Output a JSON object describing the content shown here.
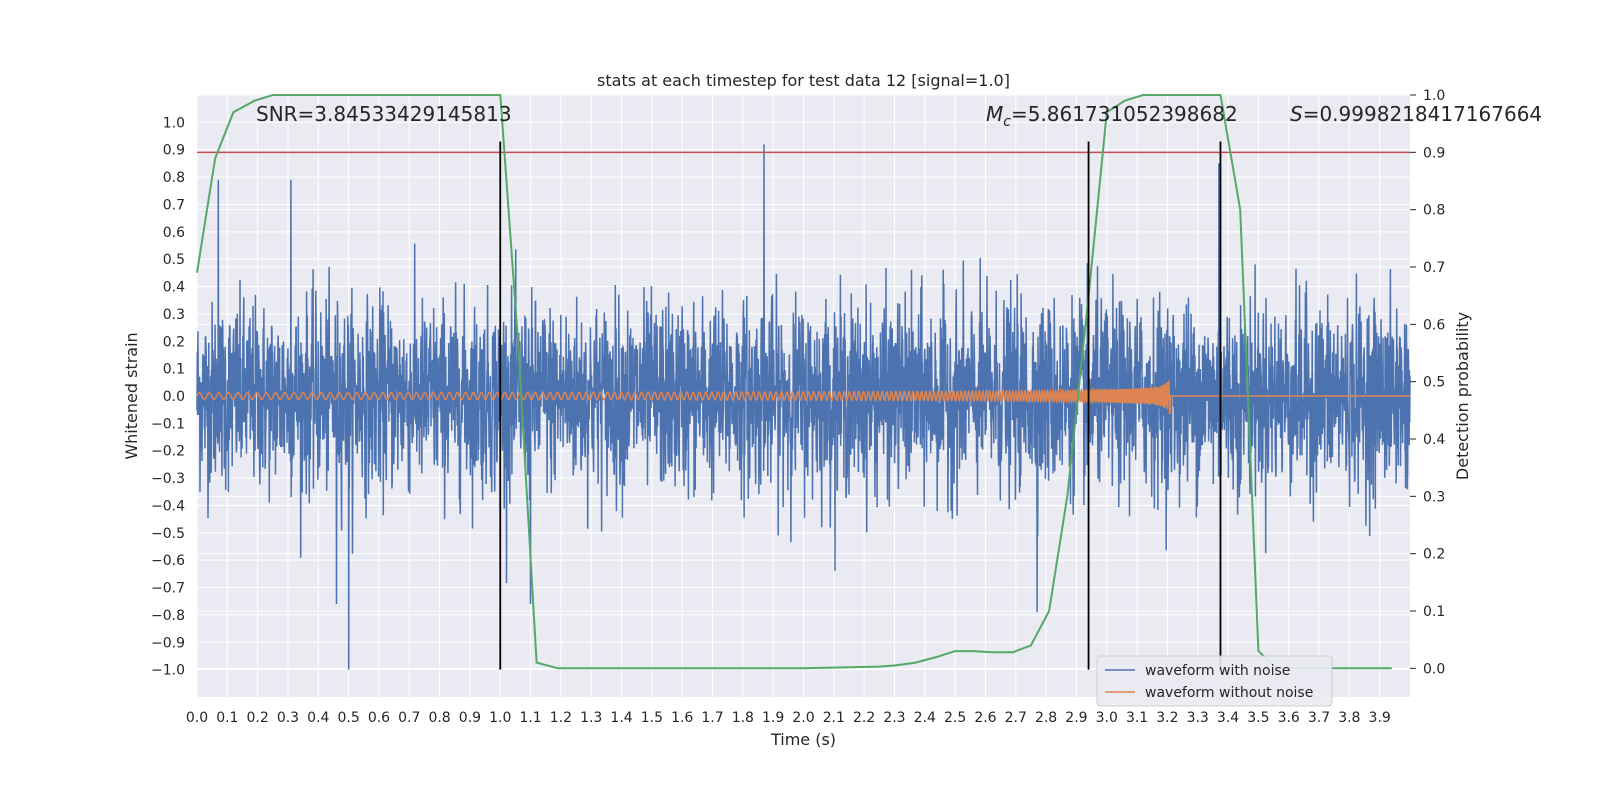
{
  "chart_data": {
    "type": "line",
    "title": "stats at each timestep for test data 12 [signal=1.0]",
    "xlabel": "Time (s)",
    "ylabel": "Whitened strain",
    "y2label": "Detection probability",
    "xlim": [
      0.0,
      4.0
    ],
    "ylim": [
      -1.1,
      1.1
    ],
    "y2lim": [
      -0.05,
      1.0
    ],
    "x_ticks": [
      0.0,
      0.1,
      0.2,
      0.3,
      0.4,
      0.5,
      0.6,
      0.7,
      0.8,
      0.9,
      1.0,
      1.1,
      1.2,
      1.3,
      1.4,
      1.5,
      1.6,
      1.7,
      1.8,
      1.9,
      2.0,
      2.1,
      2.2,
      2.3,
      2.4,
      2.5,
      2.6,
      2.7,
      2.8,
      2.9,
      3.0,
      3.1,
      3.2,
      3.3,
      3.4,
      3.5,
      3.6,
      3.7,
      3.8,
      3.9
    ],
    "x_tick_labels": [
      "0.0",
      "0.1",
      "0.2",
      "0.3",
      "0.4",
      "0.5",
      "0.6",
      "0.7",
      "0.8",
      "0.9",
      "1.0",
      "1.1",
      "1.2",
      "1.3",
      "1.4",
      "1.5",
      "1.6",
      "1.7",
      "1.8",
      "1.9",
      "2.0",
      "2.1",
      "2.2",
      "2.3",
      "2.4",
      "2.5",
      "2.6",
      "2.7",
      "2.8",
      "2.9",
      "3.0",
      "3.1",
      "3.2",
      "3.3",
      "3.4",
      "3.5",
      "3.6",
      "3.7",
      "3.8",
      "3.9"
    ],
    "y_ticks": [
      -1.0,
      -0.9,
      -0.8,
      -0.7,
      -0.6,
      -0.5,
      -0.4,
      -0.3,
      -0.2,
      -0.1,
      0.0,
      0.1,
      0.2,
      0.3,
      0.4,
      0.5,
      0.6,
      0.7,
      0.8,
      0.9,
      1.0
    ],
    "y_tick_labels": [
      "−1.0",
      "−0.9",
      "−0.8",
      "−0.7",
      "−0.6",
      "−0.5",
      "−0.4",
      "−0.3",
      "−0.2",
      "−0.1",
      "0.0",
      "0.1",
      "0.2",
      "0.3",
      "0.4",
      "0.5",
      "0.6",
      "0.7",
      "0.8",
      "0.9",
      "1.0"
    ],
    "y2_ticks": [
      0.0,
      0.1,
      0.2,
      0.3,
      0.4,
      0.5,
      0.6,
      0.7,
      0.8,
      0.9,
      1.0
    ],
    "y2_tick_labels": [
      "0.0",
      "0.1",
      "0.2",
      "0.3",
      "0.4",
      "0.5",
      "0.6",
      "0.7",
      "0.8",
      "0.9",
      "1.0"
    ],
    "annotations": {
      "snr": "SNR=3.84533429145813",
      "mc_symbol": "M",
      "mc_sub": "c",
      "mc_value": "=5.861731052398682",
      "s_symbol": "S",
      "s_value": "=0.9998218417167664"
    },
    "threshold": {
      "axis": "y2",
      "value": 0.9,
      "color": "#c44e52"
    },
    "vertical_lines": [
      {
        "x": 1.0,
        "from_y": -1.0,
        "to_y": 0.93
      },
      {
        "x": 2.94,
        "from_y": -1.0,
        "to_y": 0.93
      },
      {
        "x": 3.375,
        "from_y": -1.0,
        "to_y": 0.93
      }
    ],
    "series": [
      {
        "name": "waveform with noise",
        "axis": "y",
        "color": "#4c72b0",
        "description": "dense noisy strain, sampled 2048 Hz, amplitude mostly within ±0.6 with peaks near 0.92 and −1.0",
        "x_range": [
          0.0,
          4.0
        ],
        "peaks": [
          [
            0.07,
            0.79
          ],
          [
            0.31,
            0.79
          ],
          [
            0.5,
            -1.0
          ],
          [
            0.46,
            -0.76
          ],
          [
            1.87,
            0.92
          ],
          [
            1.1,
            -0.76
          ],
          [
            2.77,
            -0.79
          ],
          [
            3.37,
            0.85
          ]
        ]
      },
      {
        "name": "waveform without noise",
        "axis": "y",
        "color": "#dd8452",
        "description": "chirp waveform with growing amplitude and frequency until merger near 3.21 s, flat zero afterwards",
        "x_range": [
          0.0,
          4.0
        ],
        "merger_time": 3.21,
        "start_amplitude": 0.012,
        "peak_amplitude": 0.09
      },
      {
        "name": "detection probability",
        "axis": "y2",
        "color": "#55a868",
        "x": [
          0.0,
          0.06,
          0.12,
          0.19,
          0.25,
          0.5,
          0.75,
          1.0,
          1.06,
          1.12,
          1.19,
          1.5,
          1.75,
          2.0,
          2.25,
          2.3,
          2.37,
          2.44,
          2.5,
          2.56,
          2.62,
          2.69,
          2.75,
          2.81,
          2.87,
          2.94,
          3.0,
          3.06,
          3.12,
          3.19,
          3.25,
          3.31,
          3.375,
          3.44,
          3.5,
          3.56,
          3.62,
          3.75,
          3.87,
          3.94
        ],
        "values": [
          0.69,
          0.89,
          0.97,
          0.99,
          1.0,
          1.0,
          1.0,
          1.0,
          0.56,
          0.01,
          0.0,
          0.0,
          0.0,
          0.0,
          0.003,
          0.005,
          0.01,
          0.02,
          0.03,
          0.03,
          0.028,
          0.028,
          0.04,
          0.1,
          0.3,
          0.65,
          0.97,
          0.99,
          1.0,
          1.0,
          1.0,
          1.0,
          1.0,
          0.8,
          0.03,
          0.0,
          0.0,
          0.0,
          0.0,
          0.0
        ]
      }
    ],
    "legend": {
      "placement": "lower-right",
      "entries": [
        {
          "label": "waveform with noise",
          "color": "#4c72b0"
        },
        {
          "label": "waveform without noise",
          "color": "#dd8452"
        }
      ]
    },
    "grid": true
  }
}
